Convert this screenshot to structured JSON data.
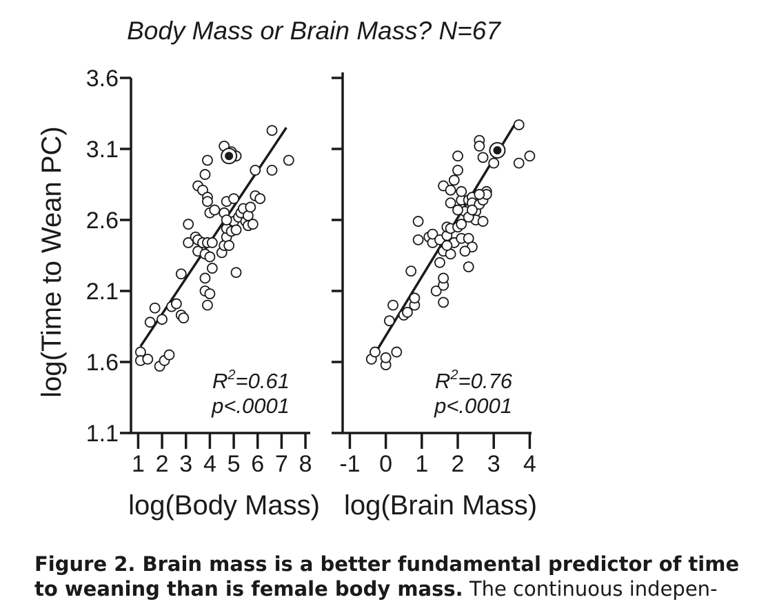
{
  "figure": {
    "title": "Body Mass or Brain Mass? N=67",
    "ylabel": "log(Time to Wean PC)"
  },
  "caption": {
    "line1_bold": "Figure 2. Brain mass is a better fundamental predictor of time",
    "line2_bold": "to weaning than is female body mass.",
    "line2_rest": " The continuous indepen-"
  },
  "chart_data": [
    {
      "type": "scatter",
      "title": "Body Mass or Brain Mass? N=67",
      "xlabel": "log(Body Mass)",
      "ylabel": "log(Time to Wean PC)",
      "xlim": [
        0.7,
        8.2
      ],
      "ylim": [
        1.1,
        3.6
      ],
      "xticks": [
        1,
        2,
        3,
        4,
        5,
        6,
        7,
        8
      ],
      "yticks": [
        1.1,
        1.6,
        2.1,
        2.6,
        3.1,
        3.6
      ],
      "ytick_labels": [
        "1.1",
        "1.6",
        "2.1",
        "2.6",
        "3.1",
        "3.6"
      ],
      "annotation": {
        "r2_prefix": "R",
        "r2_sup": "2",
        "r2_value": "=0.61",
        "p": "p<.0001"
      },
      "fit_line": {
        "x": [
          1.1,
          7.2
        ],
        "y": [
          1.71,
          3.25
        ]
      },
      "highlight": {
        "x": 4.8,
        "y": 3.05
      },
      "points": [
        [
          1.1,
          1.67
        ],
        [
          1.1,
          1.61
        ],
        [
          1.4,
          1.62
        ],
        [
          1.9,
          1.57
        ],
        [
          2.1,
          1.61
        ],
        [
          2.3,
          1.65
        ],
        [
          1.5,
          1.88
        ],
        [
          1.7,
          1.98
        ],
        [
          2.0,
          1.9
        ],
        [
          2.4,
          1.99
        ],
        [
          2.6,
          2.01
        ],
        [
          2.8,
          1.93
        ],
        [
          2.9,
          1.91
        ],
        [
          2.8,
          2.22
        ],
        [
          3.1,
          2.44
        ],
        [
          3.1,
          2.57
        ],
        [
          3.4,
          2.48
        ],
        [
          3.5,
          2.38
        ],
        [
          3.5,
          2.46
        ],
        [
          3.7,
          2.44
        ],
        [
          3.8,
          2.36
        ],
        [
          3.9,
          2.44
        ],
        [
          4.0,
          2.34
        ],
        [
          4.1,
          2.44
        ],
        [
          4.1,
          2.26
        ],
        [
          3.8,
          2.19
        ],
        [
          3.8,
          2.1
        ],
        [
          3.9,
          2.0
        ],
        [
          4.0,
          2.08
        ],
        [
          3.5,
          2.84
        ],
        [
          3.7,
          2.81
        ],
        [
          3.8,
          2.92
        ],
        [
          3.9,
          2.76
        ],
        [
          3.9,
          2.73
        ],
        [
          4.0,
          2.65
        ],
        [
          3.9,
          3.02
        ],
        [
          4.2,
          2.67
        ],
        [
          4.5,
          2.37
        ],
        [
          4.6,
          2.42
        ],
        [
          4.7,
          2.48
        ],
        [
          4.7,
          2.54
        ],
        [
          4.7,
          2.73
        ],
        [
          4.9,
          2.52
        ],
        [
          5.0,
          2.59
        ],
        [
          5.1,
          2.53
        ],
        [
          5.0,
          2.75
        ],
        [
          5.2,
          2.62
        ],
        [
          5.1,
          2.23
        ],
        [
          5.3,
          2.65
        ],
        [
          5.4,
          2.68
        ],
        [
          5.5,
          2.59
        ],
        [
          5.6,
          2.63
        ],
        [
          5.7,
          2.69
        ],
        [
          5.6,
          2.56
        ],
        [
          5.8,
          2.57
        ],
        [
          5.9,
          2.77
        ],
        [
          6.1,
          2.75
        ],
        [
          5.9,
          2.95
        ],
        [
          6.6,
          2.95
        ],
        [
          6.6,
          3.23
        ],
        [
          7.3,
          3.02
        ],
        [
          4.6,
          3.12
        ],
        [
          4.9,
          3.08
        ],
        [
          5.1,
          3.05
        ],
        [
          4.8,
          2.42
        ],
        [
          4.6,
          2.65
        ],
        [
          4.7,
          2.6
        ]
      ]
    },
    {
      "type": "scatter",
      "xlabel": "log(Brain Mass)",
      "xlim": [
        -1.2,
        4.05
      ],
      "ylim": [
        1.1,
        3.6
      ],
      "xticks": [
        -1,
        0,
        1,
        2,
        3,
        4
      ],
      "annotation": {
        "r2_prefix": "R",
        "r2_sup": "2",
        "r2_value": "=0.76",
        "p": "p<.0001"
      },
      "fit_line": {
        "x": [
          -0.3,
          3.6
        ],
        "y": [
          1.66,
          3.28
        ]
      },
      "highlight": {
        "x": 3.1,
        "y": 3.09
      },
      "points": [
        [
          -0.4,
          1.62
        ],
        [
          -0.3,
          1.67
        ],
        [
          0.0,
          1.58
        ],
        [
          0.0,
          1.63
        ],
        [
          0.3,
          1.67
        ],
        [
          0.1,
          1.89
        ],
        [
          0.2,
          2.0
        ],
        [
          0.5,
          1.93
        ],
        [
          0.6,
          1.95
        ],
        [
          0.8,
          2.0
        ],
        [
          0.8,
          2.05
        ],
        [
          0.7,
          2.24
        ],
        [
          0.9,
          2.46
        ],
        [
          0.9,
          2.59
        ],
        [
          1.2,
          2.48
        ],
        [
          1.3,
          2.44
        ],
        [
          1.3,
          2.5
        ],
        [
          1.5,
          2.46
        ],
        [
          1.5,
          2.3
        ],
        [
          1.4,
          2.1
        ],
        [
          1.6,
          2.02
        ],
        [
          1.6,
          2.14
        ],
        [
          1.6,
          2.19
        ],
        [
          1.6,
          2.38
        ],
        [
          1.7,
          2.49
        ],
        [
          1.7,
          2.55
        ],
        [
          1.8,
          2.54
        ],
        [
          1.9,
          2.44
        ],
        [
          1.8,
          2.36
        ],
        [
          2.0,
          2.55
        ],
        [
          2.1,
          2.57
        ],
        [
          2.1,
          2.47
        ],
        [
          2.3,
          2.47
        ],
        [
          2.4,
          2.41
        ],
        [
          2.3,
          2.27
        ],
        [
          2.2,
          2.38
        ],
        [
          1.6,
          2.84
        ],
        [
          1.8,
          2.81
        ],
        [
          1.9,
          2.88
        ],
        [
          2.0,
          2.95
        ],
        [
          2.0,
          3.05
        ],
        [
          2.1,
          2.74
        ],
        [
          2.3,
          2.74
        ],
        [
          2.4,
          2.76
        ],
        [
          2.4,
          2.72
        ],
        [
          2.5,
          2.66
        ],
        [
          2.5,
          2.6
        ],
        [
          2.6,
          2.71
        ],
        [
          2.7,
          2.59
        ],
        [
          2.7,
          2.74
        ],
        [
          2.8,
          2.8
        ],
        [
          2.8,
          2.78
        ],
        [
          2.6,
          2.78
        ],
        [
          2.2,
          2.66
        ],
        [
          2.0,
          2.67
        ],
        [
          2.6,
          3.16
        ],
        [
          2.6,
          3.12
        ],
        [
          2.7,
          3.04
        ],
        [
          3.0,
          3.0
        ],
        [
          3.7,
          3.27
        ],
        [
          4.0,
          3.05
        ],
        [
          3.7,
          3.0
        ],
        [
          1.8,
          2.72
        ],
        [
          2.3,
          2.62
        ],
        [
          2.4,
          2.67
        ],
        [
          1.7,
          2.42
        ],
        [
          2.1,
          2.8
        ]
      ]
    }
  ]
}
